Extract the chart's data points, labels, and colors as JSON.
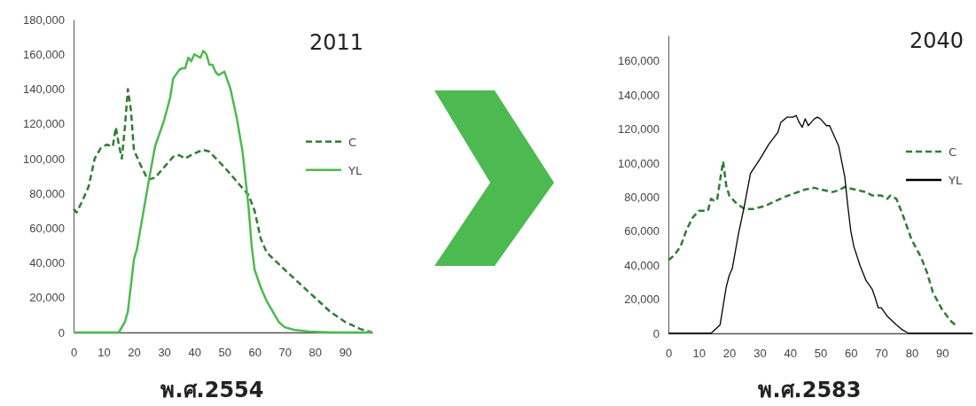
{
  "chart_data": [
    {
      "type": "line",
      "title": "2011",
      "xlabel": "พ.ศ.2554",
      "xlim": [
        0,
        99
      ],
      "xticks": [
        0,
        10,
        20,
        30,
        40,
        50,
        60,
        70,
        80,
        90
      ],
      "ylim": [
        0,
        180000
      ],
      "yticks": [
        {
          "value": 0,
          "label": "0"
        },
        {
          "value": 20000,
          "label": "20,000"
        },
        {
          "value": 40000,
          "label": "40,000"
        },
        {
          "value": 60000,
          "label": "60,000"
        },
        {
          "value": 80000,
          "label": "80,000"
        },
        {
          "value": 100000,
          "label": "100,000"
        },
        {
          "value": 120000,
          "label": "120,000"
        },
        {
          "value": 140000,
          "label": "140,000"
        },
        {
          "value": 160000,
          "label": "160,000"
        },
        {
          "value": 180000,
          "label": "180,000"
        }
      ],
      "legend": "right",
      "grid": false,
      "series": [
        {
          "name": "C",
          "color": "#2e7d32",
          "line_style": "dashed",
          "x": [
            0,
            1,
            3,
            5,
            6,
            7,
            9,
            11,
            13,
            14,
            15,
            16,
            17,
            18,
            19,
            20,
            22,
            24,
            25,
            27,
            30,
            33,
            35,
            37,
            40,
            43,
            45,
            50,
            55,
            58,
            60,
            62,
            64,
            67,
            70,
            75,
            80,
            85,
            90,
            95,
            99
          ],
          "values": [
            71000,
            69000,
            76000,
            84000,
            92000,
            100000,
            106000,
            108000,
            107000,
            118000,
            108000,
            100000,
            118000,
            140000,
            128000,
            105000,
            97000,
            90000,
            88000,
            89000,
            95000,
            101000,
            102000,
            100000,
            103000,
            105000,
            104000,
            95000,
            85000,
            79000,
            70000,
            54000,
            46000,
            41000,
            36000,
            28000,
            20000,
            12000,
            6000,
            2000,
            0
          ]
        },
        {
          "name": "YL",
          "color": "#4cba50",
          "line_style": "solid",
          "x": [
            0,
            15,
            17,
            18,
            20,
            21,
            23,
            25,
            27,
            30,
            32,
            33,
            35,
            36,
            37,
            38,
            39,
            40,
            42,
            43,
            44,
            45,
            46,
            47,
            48,
            49,
            50,
            52,
            54,
            56,
            58,
            59,
            60,
            62,
            64,
            66,
            68,
            70,
            73,
            78,
            85,
            99
          ],
          "values": [
            0,
            0,
            6000,
            12000,
            42000,
            48000,
            68000,
            88000,
            107000,
            122000,
            135000,
            146000,
            151000,
            152000,
            152000,
            158000,
            156000,
            160000,
            158000,
            162000,
            160000,
            154000,
            154000,
            150000,
            148000,
            149000,
            150000,
            140000,
            124000,
            104000,
            72000,
            50000,
            36000,
            26000,
            18000,
            12000,
            6000,
            3000,
            1500,
            500,
            0,
            0
          ]
        }
      ]
    },
    {
      "type": "line",
      "title": "2040",
      "xlabel": "พ.ศ.2583",
      "xlim": [
        0,
        100
      ],
      "xticks": [
        0,
        10,
        20,
        30,
        40,
        50,
        60,
        70,
        80,
        90
      ],
      "ylim": [
        0,
        175000
      ],
      "yticks": [
        {
          "value": 0,
          "label": "0"
        },
        {
          "value": 20000,
          "label": "20,000"
        },
        {
          "value": 40000,
          "label": "40,000"
        },
        {
          "value": 60000,
          "label": "60,000"
        },
        {
          "value": 80000,
          "label": "80,000"
        },
        {
          "value": 100000,
          "label": "100,000"
        },
        {
          "value": 120000,
          "label": "120,000"
        },
        {
          "value": 140000,
          "label": "140,000"
        },
        {
          "value": 160000,
          "label": "160,000"
        }
      ],
      "legend": "right",
      "grid": false,
      "series": [
        {
          "name": "C",
          "color": "#2e7d32",
          "line_style": "dashed",
          "x": [
            0,
            2,
            4,
            6,
            8,
            10,
            12,
            13,
            14,
            15,
            16,
            17,
            18,
            19,
            20,
            22,
            25,
            28,
            32,
            38,
            45,
            48,
            50,
            54,
            56,
            58,
            60,
            65,
            67,
            70,
            72,
            73,
            75,
            77,
            80,
            83,
            85,
            87,
            90,
            93,
            95
          ],
          "values": [
            43000,
            46000,
            51000,
            61000,
            68000,
            72000,
            72000,
            72000,
            79000,
            78000,
            78000,
            90000,
            101000,
            87000,
            81000,
            77000,
            73000,
            73000,
            75000,
            80000,
            84500,
            85500,
            84500,
            83000,
            84000,
            86000,
            85000,
            83000,
            81000,
            81000,
            79000,
            81000,
            79000,
            70000,
            55000,
            45000,
            36000,
            24000,
            14000,
            7000,
            4000
          ]
        },
        {
          "name": "YL",
          "color": "#000000",
          "line_style": "solid",
          "x": [
            0,
            14,
            17,
            19,
            20,
            21,
            23,
            25,
            27,
            30,
            33,
            36,
            37,
            39,
            41,
            42,
            43,
            44,
            45,
            46,
            47,
            48,
            49,
            50,
            52,
            53,
            56,
            58,
            59,
            60,
            61,
            63,
            65,
            67,
            68,
            69,
            70,
            72,
            75,
            77,
            79,
            85,
            100
          ],
          "values": [
            0,
            0,
            5000,
            27000,
            34000,
            38000,
            58000,
            75000,
            94000,
            102000,
            111000,
            118000,
            124000,
            127000,
            127000,
            128000,
            124000,
            121000,
            126000,
            122000,
            124000,
            126000,
            127000,
            126000,
            122000,
            122000,
            110000,
            92000,
            75000,
            60000,
            51000,
            40000,
            31000,
            26000,
            21000,
            15000,
            15000,
            10000,
            5000,
            2000,
            0,
            0,
            0
          ]
        }
      ]
    }
  ]
}
